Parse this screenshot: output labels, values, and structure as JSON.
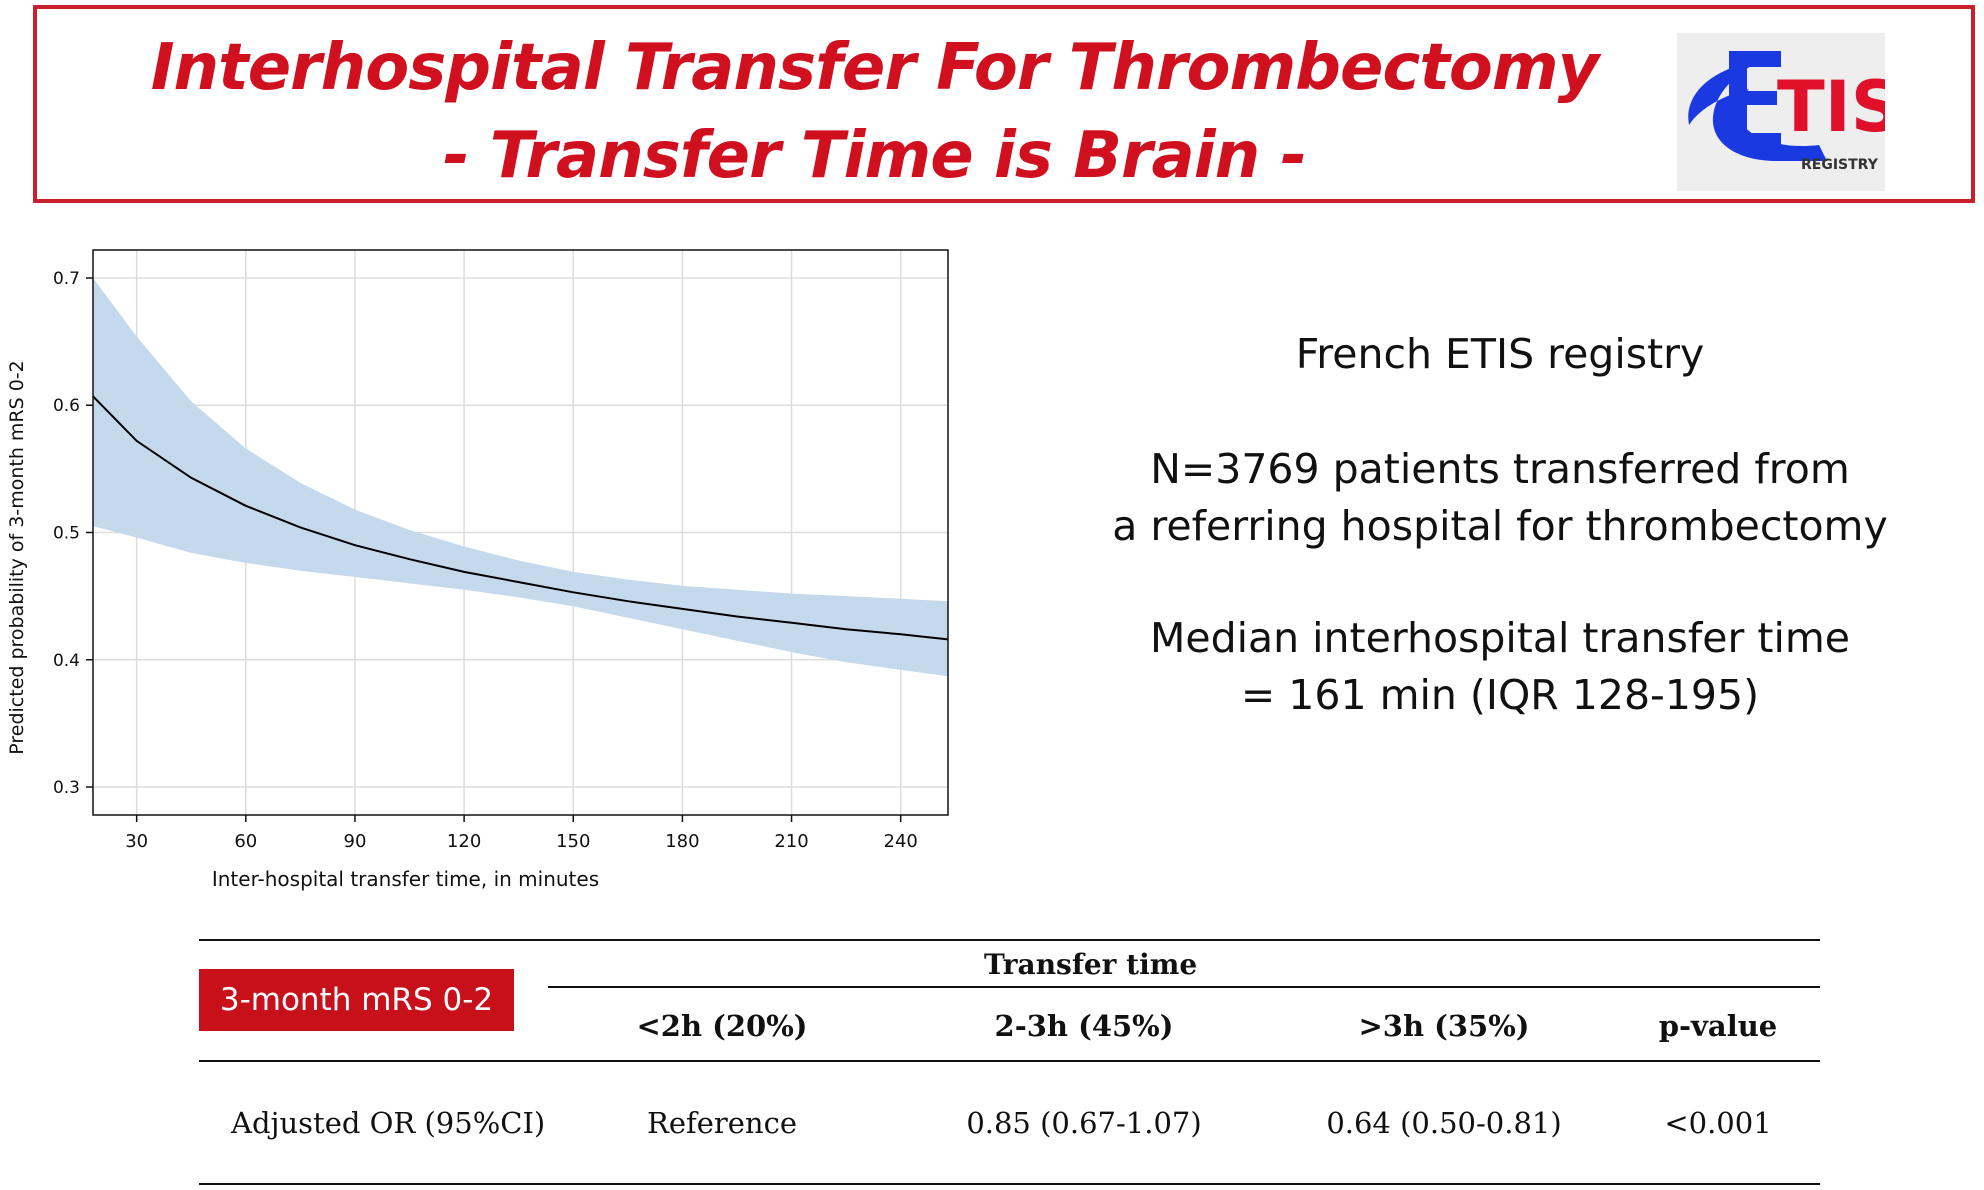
{
  "header": {
    "title_line1": "Interhospital Transfer For Thrombectomy",
    "title_line2": "- Transfer Time is Brain -",
    "logo_text": "TIS",
    "logo_subtext": "REGISTRY",
    "accent_color": "#d0101e"
  },
  "info": {
    "line1": "French ETIS registry",
    "line2": "N=3769 patients transferred from",
    "line3": "a referring hospital for thrombectomy",
    "line4": "Median interhospital transfer time",
    "line5": "= 161 min (IQR 128-195)"
  },
  "table": {
    "badge": "3-month mRS 0-2",
    "group_header": "Transfer time",
    "columns": [
      "<2h (20%)",
      "2-3h (45%)",
      ">3h (35%)",
      "p-value"
    ],
    "row_label": "Adjusted OR (95%CI)",
    "row_values": [
      "Reference",
      "0.85 (0.67-1.07)",
      "0.64 (0.50-0.81)",
      "<0.001"
    ]
  },
  "chart_data": {
    "type": "line",
    "title": "",
    "xlabel": "Inter-hospital transfer time, in minutes",
    "ylabel": "Predicted probability of 3-month mRS 0-2",
    "xlim": [
      18,
      253
    ],
    "ylim": [
      0.278,
      0.722
    ],
    "x_ticks": [
      30,
      60,
      90,
      120,
      150,
      180,
      210,
      240
    ],
    "y_ticks": [
      0.3,
      0.4,
      0.5,
      0.6,
      0.7
    ],
    "y_tick_labels": [
      "0.3",
      "0.4",
      "0.5",
      "0.6",
      "0.7"
    ],
    "grid": true,
    "series": [
      {
        "x": [
          18,
          30,
          45,
          60,
          75,
          90,
          105,
          120,
          135,
          150,
          165,
          180,
          195,
          210,
          225,
          240,
          253
        ],
        "y": [
          0.607,
          0.572,
          0.543,
          0.521,
          0.504,
          0.49,
          0.479,
          0.469,
          0.461,
          0.453,
          0.446,
          0.44,
          0.434,
          0.429,
          0.424,
          0.42,
          0.416
        ],
        "color": "#000000"
      }
    ],
    "confidence_band": {
      "x": [
        18,
        30,
        45,
        60,
        75,
        90,
        105,
        120,
        135,
        150,
        165,
        180,
        195,
        210,
        225,
        240,
        253
      ],
      "lower": [
        0.505,
        0.496,
        0.484,
        0.476,
        0.47,
        0.465,
        0.46,
        0.455,
        0.449,
        0.442,
        0.433,
        0.424,
        0.415,
        0.406,
        0.398,
        0.392,
        0.387
      ],
      "upper": [
        0.7,
        0.654,
        0.603,
        0.566,
        0.539,
        0.518,
        0.502,
        0.489,
        0.478,
        0.469,
        0.463,
        0.458,
        0.455,
        0.452,
        0.45,
        0.448,
        0.446
      ],
      "color": "#c5d9ec"
    }
  }
}
